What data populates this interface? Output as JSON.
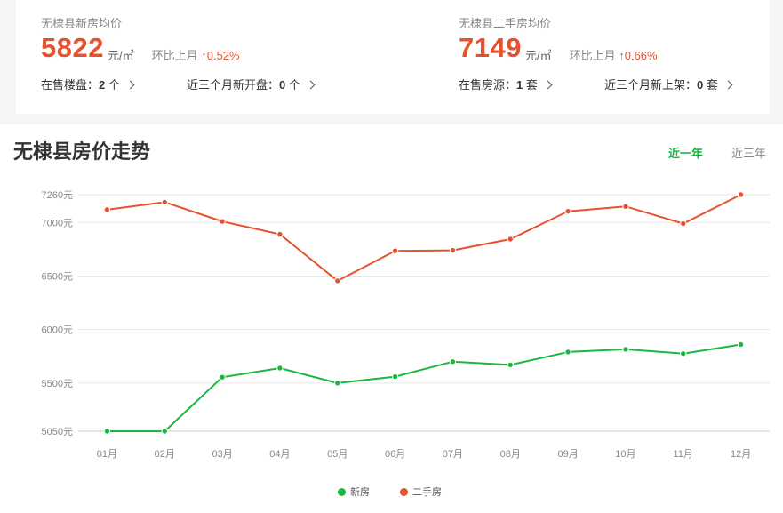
{
  "summary": {
    "new": {
      "label": "无棣县新房均价",
      "price": "5822",
      "unit": "元/㎡",
      "mom_label": "环比上月",
      "mom_value": "↑0.52%",
      "stat1_label": "在售楼盘：",
      "stat1_value": "2",
      "stat1_unit": "个",
      "stat2_label": "近三个月新开盘：",
      "stat2_value": "0",
      "stat2_unit": "个"
    },
    "second": {
      "label": "无棣县二手房均价",
      "price": "7149",
      "unit": "元/㎡",
      "mom_label": "环比上月",
      "mom_value": "↑0.66%",
      "stat1_label": "在售房源：",
      "stat1_value": "1",
      "stat1_unit": "套",
      "stat2_label": "近三个月新上架：",
      "stat2_value": "0",
      "stat2_unit": "套"
    }
  },
  "trend": {
    "title": "无棣县房价走势",
    "tabs": [
      {
        "label": "近一年",
        "active": true
      },
      {
        "label": "近三年",
        "active": false
      }
    ]
  },
  "colors": {
    "new": "#19b840",
    "second": "#e8512e"
  },
  "chart_data": {
    "type": "line",
    "title": "",
    "xlabel": "",
    "ylabel": "",
    "ylim": [
      5050,
      7260
    ],
    "yticks": [
      5050,
      5500,
      6000,
      6500,
      7000,
      7260
    ],
    "ytick_suffix": "元",
    "grid": true,
    "legend_position": "bottom-center",
    "categories": [
      "01月",
      "02月",
      "03月",
      "04月",
      "05月",
      "06月",
      "07月",
      "08月",
      "09月",
      "10月",
      "11月",
      "12月"
    ],
    "series": [
      {
        "name": "新房",
        "color": "#19b840",
        "values": [
          5050,
          5050,
          5555,
          5640,
          5500,
          5560,
          5700,
          5670,
          5790,
          5815,
          5775,
          5860
        ]
      },
      {
        "name": "二手房",
        "color": "#e8512e",
        "values": [
          7120,
          7190,
          7010,
          6890,
          6455,
          6735,
          6740,
          6845,
          7105,
          7150,
          6990,
          7260
        ]
      }
    ]
  }
}
